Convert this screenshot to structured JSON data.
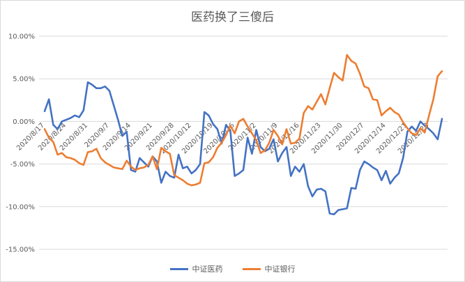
{
  "chart_data": {
    "type": "line",
    "title": "医药换了三傻后",
    "xlabel": "",
    "ylabel": "",
    "ylim": [
      -15,
      10
    ],
    "yticks": [
      "10.00%",
      "5.00%",
      "0.00%",
      "-5.00%",
      "-10.00%",
      "-15.00%"
    ],
    "grid": true,
    "legend": "bottom",
    "x": [
      "2020/8/17",
      "2020/8/18",
      "2020/8/19",
      "2020/8/20",
      "2020/8/21",
      "2020/8/24",
      "2020/8/25",
      "2020/8/26",
      "2020/8/27",
      "2020/8/28",
      "2020/8/31",
      "2020/9/1",
      "2020/9/2",
      "2020/9/3",
      "2020/9/4",
      "2020/9/7",
      "2020/9/8",
      "2020/9/9",
      "2020/9/10",
      "2020/9/11",
      "2020/9/14",
      "2020/9/15",
      "2020/9/16",
      "2020/9/17",
      "2020/9/18",
      "2020/9/21",
      "2020/9/22",
      "2020/9/23",
      "2020/9/24",
      "2020/9/25",
      "2020/9/28",
      "2020/9/29",
      "2020/9/30",
      "2020/10/9",
      "2020/10/12",
      "2020/10/13",
      "2020/10/14",
      "2020/10/15",
      "2020/10/16",
      "2020/10/19",
      "2020/10/20",
      "2020/10/21",
      "2020/10/22",
      "2020/10/23",
      "2020/10/26",
      "2020/10/27",
      "2020/10/28",
      "2020/10/29",
      "2020/10/30",
      "2020/11/2",
      "2020/11/3",
      "2020/11/4",
      "2020/11/5",
      "2020/11/6",
      "2020/11/9",
      "2020/11/10",
      "2020/11/11",
      "2020/11/12",
      "2020/11/13",
      "2020/11/16",
      "2020/11/17",
      "2020/11/18",
      "2020/11/19",
      "2020/11/20",
      "2020/11/23",
      "2020/11/24",
      "2020/11/25",
      "2020/11/26",
      "2020/11/27",
      "2020/11/30",
      "2020/12/1",
      "2020/12/2",
      "2020/12/3",
      "2020/12/4",
      "2020/12/7",
      "2020/12/8",
      "2020/12/9",
      "2020/12/10",
      "2020/12/11",
      "2020/12/14",
      "2020/12/15",
      "2020/12/16",
      "2020/12/17",
      "2020/12/18",
      "2020/12/21",
      "2020/12/22",
      "2020/12/23",
      "2020/12/24",
      "2020/12/25",
      "2020/12/28",
      "2020/12/29",
      "2020/12/30",
      "2020/12/31"
    ],
    "xtick_labels": [
      "2020/8/17",
      "2020/8/24",
      "2020/8/31",
      "2020/9/7",
      "2020/9/14",
      "2020/9/21",
      "2020/9/28",
      "2020/10/5",
      "2020/10/12",
      "2020/10/19",
      "2020/10/26",
      "2020/11/2",
      "2020/11/9",
      "2020/11/16",
      "2020/11/23",
      "2020/11/30",
      "2020/12/7",
      "2020/12/14",
      "2020/12/21",
      "2020/12/28"
    ],
    "series": [
      {
        "name": "中证医药",
        "color": "#4472c4",
        "values": [
          1.2,
          2.6,
          -0.4,
          -0.9,
          0.0,
          0.2,
          0.4,
          0.7,
          0.5,
          1.3,
          4.6,
          4.3,
          3.9,
          3.9,
          4.1,
          3.6,
          1.9,
          0.2,
          -1.7,
          -1.2,
          -5.7,
          -5.9,
          -4.3,
          -4.8,
          -5.3,
          -4.1,
          -4.7,
          -7.2,
          -5.9,
          -6.4,
          -6.6,
          -3.9,
          -5.5,
          -5.3,
          -6.1,
          -5.7,
          -5.0,
          1.1,
          0.7,
          -0.3,
          -0.9,
          -2.6,
          -0.4,
          -1.1,
          -6.4,
          -6.1,
          -5.7,
          -1.9,
          -3.8,
          -1.0,
          -3.0,
          -3.5,
          -3.2,
          -2.1,
          -4.7,
          -3.7,
          -3.0,
          -6.4,
          -5.3,
          -5.9,
          -5.0,
          -7.6,
          -8.8,
          -8.0,
          -7.9,
          -8.2,
          -10.8,
          -10.9,
          -10.4,
          -10.3,
          -10.2,
          -7.8,
          -7.9,
          -5.7,
          -4.7,
          -5.0,
          -5.4,
          -5.7,
          -6.9,
          -5.8,
          -7.3,
          -6.6,
          -6.1,
          -4.3,
          -1.2,
          -0.6,
          -1.1,
          0.0,
          -0.5,
          -0.9,
          -1.4,
          -2.1,
          0.3
        ]
      },
      {
        "name": "中证银行",
        "color": "#ed7d31",
        "values": [
          -0.9,
          -1.9,
          -2.4,
          -3.9,
          -3.7,
          -4.2,
          -4.3,
          -4.5,
          -4.9,
          -5.1,
          -3.6,
          -3.5,
          -3.2,
          -4.3,
          -4.8,
          -5.1,
          -5.4,
          -5.5,
          -5.6,
          -4.6,
          -5.3,
          -5.7,
          -5.5,
          -5.4,
          -5.1,
          -4.1,
          -5.6,
          -3.1,
          -3.5,
          -3.8,
          -6.3,
          -6.6,
          -6.9,
          -7.3,
          -7.5,
          -7.4,
          -7.2,
          -4.9,
          -4.8,
          -4.2,
          -3.1,
          -2.5,
          -1.6,
          -0.5,
          -1.4,
          0.0,
          0.3,
          -0.6,
          -1.4,
          -2.2,
          -3.7,
          -3.4,
          -2.5,
          -1.0,
          -1.7,
          -2.7,
          -0.9,
          -2.6,
          -2.5,
          -2.0,
          1.0,
          1.8,
          1.4,
          2.3,
          3.2,
          2.0,
          3.9,
          5.7,
          5.2,
          4.8,
          7.8,
          7.1,
          6.8,
          5.6,
          4.1,
          3.9,
          2.6,
          2.5,
          0.7,
          1.2,
          1.6,
          1.1,
          0.8,
          -0.1,
          -0.8,
          -1.4,
          -1.6,
          -0.8,
          -1.3,
          0.7,
          2.6,
          5.3,
          5.9
        ]
      }
    ]
  }
}
